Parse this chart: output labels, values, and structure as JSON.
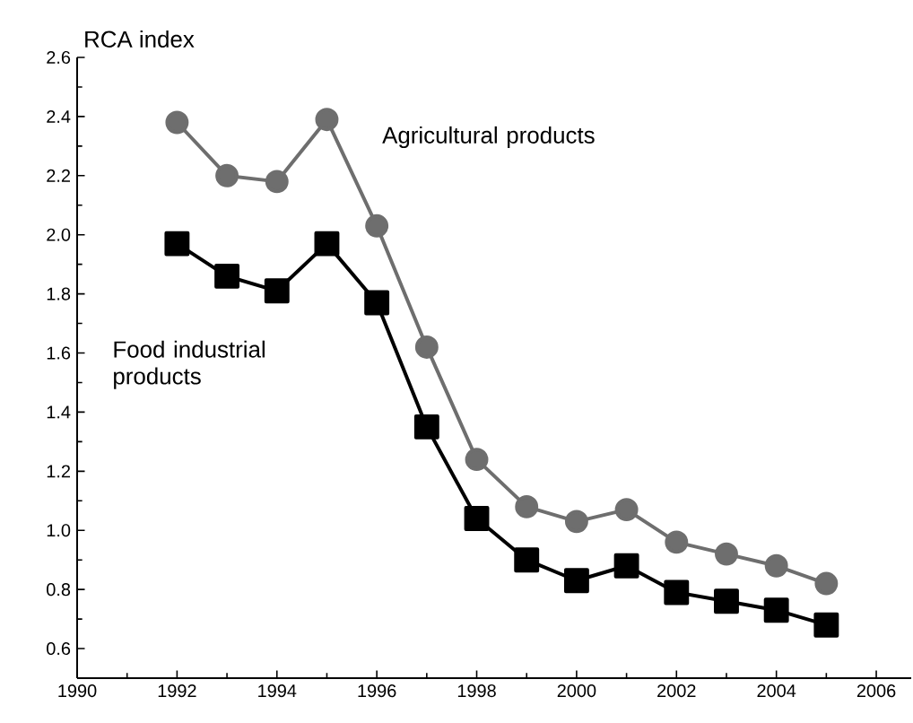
{
  "chart_data": {
    "type": "line",
    "ylabel": "RCA index",
    "x": [
      1992,
      1993,
      1994,
      1995,
      1996,
      1997,
      1998,
      1999,
      2000,
      2001,
      2002,
      2003,
      2004,
      2005
    ],
    "series": [
      {
        "name": "Agricultural products",
        "color": "#6e6e6e",
        "marker": "circle",
        "values": [
          2.38,
          2.2,
          2.18,
          2.39,
          2.03,
          1.62,
          1.24,
          1.08,
          1.03,
          1.07,
          0.96,
          0.92,
          0.88,
          0.82
        ]
      },
      {
        "name": "Food industrial products",
        "color": "#000000",
        "marker": "square",
        "values": [
          1.97,
          1.86,
          1.81,
          1.97,
          1.77,
          1.35,
          1.04,
          0.9,
          0.83,
          0.88,
          0.79,
          0.76,
          0.73,
          0.68
        ]
      }
    ],
    "xlim": [
      1990,
      2006.7
    ],
    "ylim": [
      0.5,
      2.6
    ],
    "xticks": [
      1990,
      1992,
      1994,
      1996,
      1998,
      2000,
      2002,
      2004,
      2006
    ],
    "yticks": [
      0.6,
      0.8,
      {
        "value": 1,
        "label": "1.0"
      },
      1.2,
      1.4,
      1.6,
      1.8,
      {
        "value": 2,
        "label": "2.0"
      },
      2.2,
      2.4,
      2.6
    ],
    "tick_labels": "xy"
  }
}
